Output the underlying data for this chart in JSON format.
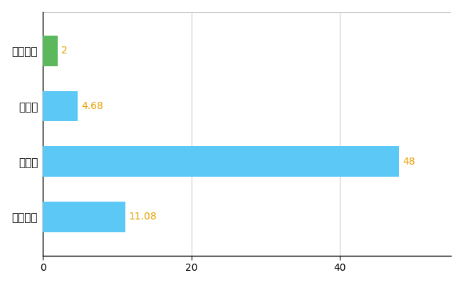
{
  "categories": [
    "つがる市",
    "県平均",
    "県最大",
    "全国平均"
  ],
  "values": [
    2,
    4.68,
    48,
    11.08
  ],
  "bar_colors": [
    "#5cb85c",
    "#5bc8f5",
    "#5bc8f5",
    "#5bc8f5"
  ],
  "label_values": [
    "2",
    "4.68",
    "48",
    "11.08"
  ],
  "label_color": "#e8a000",
  "xlim": [
    0,
    55
  ],
  "xticks": [
    0,
    20,
    40
  ],
  "grid_color": "#cccccc",
  "background_color": "#ffffff",
  "bar_height": 0.55,
  "figsize": [
    6.5,
    4.0
  ],
  "dpi": 100
}
